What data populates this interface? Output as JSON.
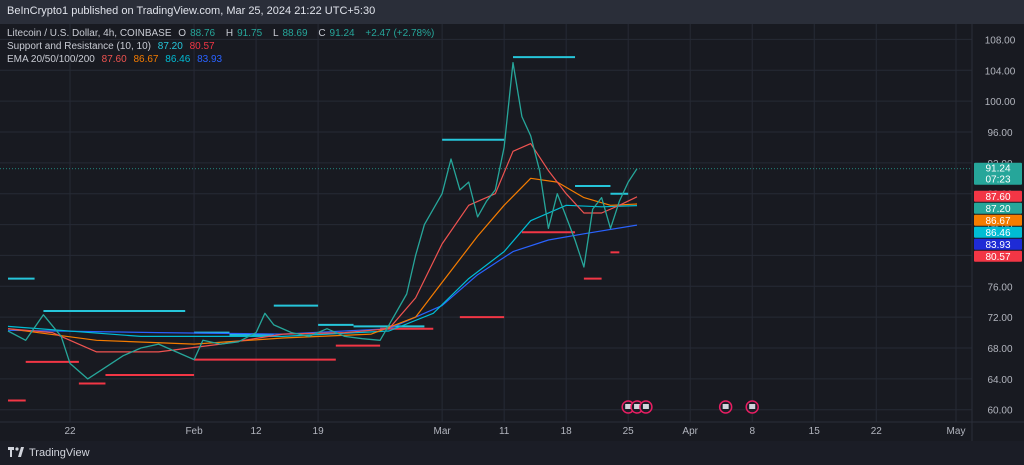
{
  "header": {
    "published": "BeInCrypto1 published on TradingView.com, Mar 25, 2024 21:22 UTC+5:30"
  },
  "legend": {
    "symbol": "Litecoin / U.S. Dollar, 4h, COINBASE",
    "ohlc": {
      "o_label": "O",
      "o": "88.76",
      "h_label": "H",
      "h": "91.75",
      "l_label": "L",
      "l": "88.69",
      "c_label": "C",
      "c": "91.24",
      "change": "+2.47 (+2.78%)"
    },
    "sr": {
      "label": "Support and Resistance (10, 10)",
      "v1": "87.20",
      "v2": "80.57"
    },
    "ema": {
      "label": "EMA 20/50/100/200",
      "v20": "87.60",
      "v50": "86.67",
      "v100": "86.46",
      "v200": "83.93"
    }
  },
  "colors": {
    "up": "#26a69a",
    "down": "#ef5350",
    "resistance": "#26c6da",
    "support": "#f23645",
    "ema20": "#ef5350",
    "ema50": "#f57c00",
    "ema100": "#00bcd4",
    "ema200": "#2962ff",
    "grid": "#262a35",
    "axis_text": "#b2b5be"
  },
  "chart_data": {
    "type": "line",
    "title": "Litecoin / U.S. Dollar, 4h, COINBASE",
    "xlabel": "",
    "ylabel": "",
    "ylim": [
      57.5,
      110
    ],
    "y_ticks": [
      "60.00",
      "64.00",
      "68.00",
      "72.00",
      "76.00",
      "80.00",
      "84.00",
      "88.00",
      "92.00",
      "96.00",
      "100.00",
      "104.00",
      "108.00"
    ],
    "x_ticks": [
      "22",
      "Feb",
      "12",
      "19",
      "Mar",
      "11",
      "18",
      "25",
      "Apr",
      "8",
      "15",
      "22",
      "May"
    ],
    "x_tick_dates": [
      "2024-01-22",
      "2024-02-05",
      "2024-02-12",
      "2024-02-19",
      "2024-03-04",
      "2024-03-11",
      "2024-03-18",
      "2024-03-25",
      "2024-04-01",
      "2024-04-08",
      "2024-04-15",
      "2024-04-22",
      "2024-05-01"
    ],
    "x_range": [
      "2024-01-15",
      "2024-05-01"
    ],
    "series": [
      {
        "name": "Litecoin / U.S. Dollar",
        "points": [
          [
            "2024-01-15",
            70.2
          ],
          [
            "2024-01-17",
            69.0
          ],
          [
            "2024-01-19",
            72.3
          ],
          [
            "2024-01-21",
            69.5
          ],
          [
            "2024-01-22",
            66.0
          ],
          [
            "2024-01-24",
            64.0
          ],
          [
            "2024-01-26",
            65.5
          ],
          [
            "2024-01-28",
            67.0
          ],
          [
            "2024-01-30",
            68.0
          ],
          [
            "2024-02-01",
            68.5
          ],
          [
            "2024-02-03",
            67.5
          ],
          [
            "2024-02-05",
            66.5
          ],
          [
            "2024-02-06",
            69.0
          ],
          [
            "2024-02-08",
            68.5
          ],
          [
            "2024-02-10",
            68.8
          ],
          [
            "2024-02-12",
            70.0
          ],
          [
            "2024-02-13",
            72.5
          ],
          [
            "2024-02-14",
            71.0
          ],
          [
            "2024-02-16",
            70.0
          ],
          [
            "2024-02-18",
            69.5
          ],
          [
            "2024-02-20",
            70.5
          ],
          [
            "2024-02-22",
            69.5
          ],
          [
            "2024-02-24",
            69.2
          ],
          [
            "2024-02-26",
            69.0
          ],
          [
            "2024-02-27",
            71.0
          ],
          [
            "2024-02-29",
            75.0
          ],
          [
            "2024-03-01",
            80.0
          ],
          [
            "2024-03-02",
            84.0
          ],
          [
            "2024-03-04",
            88.0
          ],
          [
            "2024-03-05",
            92.5
          ],
          [
            "2024-03-06",
            88.5
          ],
          [
            "2024-03-07",
            89.5
          ],
          [
            "2024-03-08",
            85.0
          ],
          [
            "2024-03-09",
            87.0
          ],
          [
            "2024-03-10",
            88.5
          ],
          [
            "2024-03-11",
            94.0
          ],
          [
            "2024-03-12",
            105.0
          ],
          [
            "2024-03-13",
            98.0
          ],
          [
            "2024-03-14",
            95.5
          ],
          [
            "2024-03-15",
            91.0
          ],
          [
            "2024-03-16",
            83.5
          ],
          [
            "2024-03-17",
            88.0
          ],
          [
            "2024-03-18",
            85.0
          ],
          [
            "2024-03-19",
            82.0
          ],
          [
            "2024-03-20",
            78.5
          ],
          [
            "2024-03-21",
            86.0
          ],
          [
            "2024-03-22",
            87.5
          ],
          [
            "2024-03-23",
            83.5
          ],
          [
            "2024-03-24",
            87.0
          ],
          [
            "2024-03-25",
            89.5
          ],
          [
            "2024-03-26",
            91.24
          ]
        ]
      },
      {
        "name": "EMA 20",
        "points": [
          [
            "2024-01-15",
            70.5
          ],
          [
            "2024-01-20",
            70.0
          ],
          [
            "2024-01-25",
            67.5
          ],
          [
            "2024-02-01",
            67.5
          ],
          [
            "2024-02-08",
            68.5
          ],
          [
            "2024-02-15",
            69.8
          ],
          [
            "2024-02-22",
            70.0
          ],
          [
            "2024-02-27",
            70.5
          ],
          [
            "2024-03-01",
            74.5
          ],
          [
            "2024-03-04",
            81.5
          ],
          [
            "2024-03-07",
            86.5
          ],
          [
            "2024-03-10",
            88.0
          ],
          [
            "2024-03-12",
            93.5
          ],
          [
            "2024-03-14",
            94.5
          ],
          [
            "2024-03-16",
            91.0
          ],
          [
            "2024-03-18",
            88.0
          ],
          [
            "2024-03-20",
            85.5
          ],
          [
            "2024-03-22",
            85.5
          ],
          [
            "2024-03-24",
            86.5
          ],
          [
            "2024-03-26",
            87.6
          ]
        ]
      },
      {
        "name": "EMA 50",
        "points": [
          [
            "2024-01-15",
            70.5
          ],
          [
            "2024-01-25",
            69.0
          ],
          [
            "2024-02-05",
            68.5
          ],
          [
            "2024-02-15",
            69.3
          ],
          [
            "2024-02-25",
            69.8
          ],
          [
            "2024-03-01",
            72.0
          ],
          [
            "2024-03-04",
            76.5
          ],
          [
            "2024-03-08",
            82.5
          ],
          [
            "2024-03-11",
            86.5
          ],
          [
            "2024-03-14",
            90.0
          ],
          [
            "2024-03-17",
            89.5
          ],
          [
            "2024-03-20",
            87.5
          ],
          [
            "2024-03-23",
            86.5
          ],
          [
            "2024-03-26",
            86.67
          ]
        ]
      },
      {
        "name": "EMA 100",
        "points": [
          [
            "2024-01-15",
            70.8
          ],
          [
            "2024-01-30",
            69.5
          ],
          [
            "2024-02-15",
            69.5
          ],
          [
            "2024-02-27",
            70.2
          ],
          [
            "2024-03-03",
            72.5
          ],
          [
            "2024-03-07",
            77.0
          ],
          [
            "2024-03-11",
            80.5
          ],
          [
            "2024-03-14",
            84.5
          ],
          [
            "2024-03-18",
            86.5
          ],
          [
            "2024-03-22",
            86.3
          ],
          [
            "2024-03-26",
            86.46
          ]
        ]
      },
      {
        "name": "EMA 200",
        "points": [
          [
            "2024-01-15",
            70.3
          ],
          [
            "2024-02-01",
            70.0
          ],
          [
            "2024-02-15",
            69.8
          ],
          [
            "2024-02-27",
            70.5
          ],
          [
            "2024-03-04",
            73.5
          ],
          [
            "2024-03-08",
            77.5
          ],
          [
            "2024-03-12",
            80.5
          ],
          [
            "2024-03-16",
            82.0
          ],
          [
            "2024-03-20",
            82.8
          ],
          [
            "2024-03-26",
            83.93
          ]
        ]
      }
    ],
    "resistance_levels": [
      {
        "from": "2024-01-15",
        "to": "2024-01-18",
        "y": 77.0
      },
      {
        "from": "2024-01-19",
        "to": "2024-02-04",
        "y": 72.8
      },
      {
        "from": "2024-02-05",
        "to": "2024-02-09",
        "y": 70.0
      },
      {
        "from": "2024-02-09",
        "to": "2024-02-14",
        "y": 69.7
      },
      {
        "from": "2024-02-14",
        "to": "2024-02-19",
        "y": 73.5
      },
      {
        "from": "2024-02-19",
        "to": "2024-02-23",
        "y": 71.0
      },
      {
        "from": "2024-02-23",
        "to": "2024-03-02",
        "y": 70.8
      },
      {
        "from": "2024-03-04",
        "to": "2024-03-11",
        "y": 95.0
      },
      {
        "from": "2024-03-12",
        "to": "2024-03-19",
        "y": 105.7
      },
      {
        "from": "2024-03-19",
        "to": "2024-03-23",
        "y": 89.0
      },
      {
        "from": "2024-03-23",
        "to": "2024-03-25",
        "y": 88.0
      }
    ],
    "support_levels": [
      {
        "from": "2024-01-15",
        "to": "2024-01-17",
        "y": 61.2
      },
      {
        "from": "2024-01-17",
        "to": "2024-01-23",
        "y": 66.2
      },
      {
        "from": "2024-01-23",
        "to": "2024-01-26",
        "y": 63.4
      },
      {
        "from": "2024-01-26",
        "to": "2024-02-05",
        "y": 64.5
      },
      {
        "from": "2024-02-05",
        "to": "2024-02-09",
        "y": 66.5
      },
      {
        "from": "2024-02-09",
        "to": "2024-02-21",
        "y": 66.5
      },
      {
        "from": "2024-02-21",
        "to": "2024-02-26",
        "y": 68.3
      },
      {
        "from": "2024-02-26",
        "to": "2024-03-03",
        "y": 70.5
      },
      {
        "from": "2024-03-06",
        "to": "2024-03-11",
        "y": 72.0
      },
      {
        "from": "2024-03-13",
        "to": "2024-03-19",
        "y": 83.0
      },
      {
        "from": "2024-03-20",
        "to": "2024-03-22",
        "y": 77.0
      },
      {
        "from": "2024-03-23",
        "to": "2024-03-24",
        "y": 80.4
      }
    ],
    "price_labels": [
      {
        "text": "91.24",
        "sub": "07:23",
        "y": 91.24,
        "color": "#26a69a"
      },
      {
        "text": "87.60",
        "y": 87.6,
        "color": "#f23645"
      },
      {
        "text": "87.20",
        "y": 87.2,
        "color": "#26a69a"
      },
      {
        "text": "86.67",
        "y": 86.67,
        "color": "#f57c00"
      },
      {
        "text": "86.46",
        "y": 86.46,
        "color": "#00bcd4"
      },
      {
        "text": "83.93",
        "y": 83.93,
        "color": "#1e2bd6"
      },
      {
        "text": "80.57",
        "y": 80.57,
        "color": "#f23645"
      }
    ],
    "event_markers": [
      "2024-03-25",
      "2024-03-26",
      "2024-03-27",
      "2024-04-05",
      "2024-04-08"
    ],
    "grid": true
  },
  "footer": {
    "brand": "TradingView"
  }
}
